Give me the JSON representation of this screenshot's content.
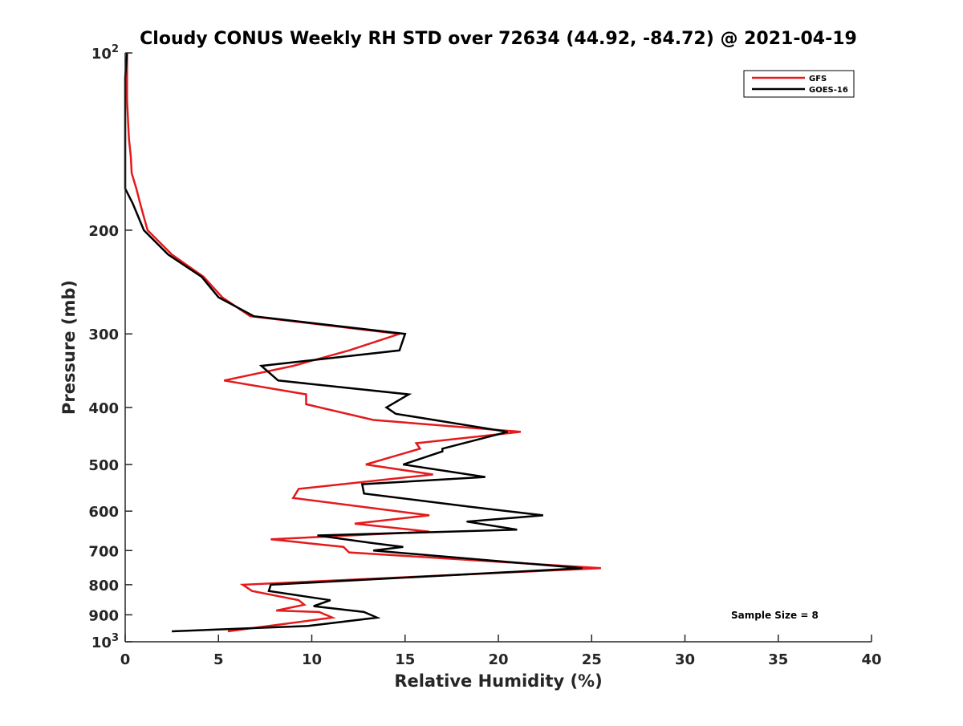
{
  "chart_data": {
    "type": "line",
    "title": "Cloudy CONUS Weekly RH STD over 72634 (44.92, -84.72) @ 2021-04-19",
    "xlabel": "Relative Humidity (%)",
    "ylabel": "Pressure (mb)",
    "xlim": [
      0,
      40
    ],
    "ylim": [
      100,
      1000
    ],
    "y_scale": "log",
    "y_reversed": true,
    "grid": false,
    "x_ticks": [
      0,
      5,
      10,
      15,
      20,
      25,
      30,
      35,
      40
    ],
    "x_tick_labels": [
      "0",
      "5",
      "10",
      "15",
      "20",
      "25",
      "30",
      "35",
      "40"
    ],
    "y_ticks": [
      100,
      200,
      300,
      400,
      500,
      600,
      700,
      800,
      900,
      1000
    ],
    "y_tick_labels": [
      {
        "base": "10",
        "exp": "2"
      },
      {
        "base": "200",
        "exp": ""
      },
      {
        "base": "300",
        "exp": ""
      },
      {
        "base": "400",
        "exp": ""
      },
      {
        "base": "500",
        "exp": ""
      },
      {
        "base": "600",
        "exp": ""
      },
      {
        "base": "700",
        "exp": ""
      },
      {
        "base": "800",
        "exp": ""
      },
      {
        "base": "900",
        "exp": ""
      },
      {
        "base": "10",
        "exp": "3"
      }
    ],
    "legend_position": "top-right",
    "annotation": "Sample Size = 8",
    "series": [
      {
        "name": "GFS",
        "color": "#e41a1c",
        "points": [
          [
            0.1,
            100
          ],
          [
            0.1,
            110
          ],
          [
            0.1,
            120
          ],
          [
            0.15,
            130
          ],
          [
            0.2,
            140
          ],
          [
            0.3,
            150
          ],
          [
            0.35,
            160
          ],
          [
            0.6,
            170
          ],
          [
            0.8,
            180
          ],
          [
            1.0,
            190
          ],
          [
            1.2,
            200
          ],
          [
            2.5,
            220
          ],
          [
            4.2,
            240
          ],
          [
            5.2,
            260
          ],
          [
            6.7,
            280
          ],
          [
            14.7,
            300
          ],
          [
            12.0,
            320
          ],
          [
            9.0,
            340
          ],
          [
            5.3,
            360
          ],
          [
            9.7,
            380
          ],
          [
            9.7,
            395
          ],
          [
            13.3,
            420
          ],
          [
            21.2,
            440
          ],
          [
            15.6,
            460
          ],
          [
            15.8,
            470
          ],
          [
            12.9,
            500
          ],
          [
            16.5,
            520
          ],
          [
            9.3,
            550
          ],
          [
            9.0,
            570
          ],
          [
            16.3,
            610
          ],
          [
            12.3,
            630
          ],
          [
            16.3,
            650
          ],
          [
            7.8,
            670
          ],
          [
            11.7,
            690
          ],
          [
            12.0,
            705
          ],
          [
            25.5,
            750
          ],
          [
            6.3,
            800
          ],
          [
            6.8,
            820
          ],
          [
            9.3,
            850
          ],
          [
            9.6,
            865
          ],
          [
            8.1,
            885
          ],
          [
            10.4,
            890
          ],
          [
            11.1,
            910
          ],
          [
            5.5,
            960
          ]
        ]
      },
      {
        "name": "GOES-16",
        "color": "#000000",
        "points": [
          [
            0.1,
            100
          ],
          [
            0.0,
            110
          ],
          [
            0.0,
            120
          ],
          [
            0.0,
            130
          ],
          [
            0.0,
            140
          ],
          [
            0.0,
            150
          ],
          [
            0.0,
            160
          ],
          [
            0.0,
            170
          ],
          [
            0.4,
            180
          ],
          [
            1.0,
            200
          ],
          [
            2.3,
            220
          ],
          [
            4.1,
            240
          ],
          [
            5.0,
            260
          ],
          [
            6.9,
            280
          ],
          [
            15.0,
            300
          ],
          [
            14.7,
            320
          ],
          [
            7.3,
            340
          ],
          [
            8.2,
            360
          ],
          [
            15.2,
            380
          ],
          [
            14.0,
            400
          ],
          [
            14.5,
            410
          ],
          [
            20.5,
            440
          ],
          [
            17.0,
            470
          ],
          [
            17.0,
            475
          ],
          [
            14.9,
            500
          ],
          [
            19.3,
            525
          ],
          [
            12.7,
            540
          ],
          [
            12.8,
            560
          ],
          [
            18.5,
            590
          ],
          [
            22.4,
            610
          ],
          [
            18.3,
            625
          ],
          [
            21.0,
            645
          ],
          [
            10.3,
            660
          ],
          [
            13.3,
            680
          ],
          [
            14.9,
            690
          ],
          [
            13.3,
            700
          ],
          [
            24.5,
            750
          ],
          [
            7.8,
            800
          ],
          [
            7.7,
            820
          ],
          [
            11.0,
            850
          ],
          [
            10.1,
            870
          ],
          [
            12.8,
            890
          ],
          [
            13.5,
            910
          ],
          [
            9.8,
            940
          ],
          [
            2.5,
            960
          ]
        ]
      }
    ]
  }
}
